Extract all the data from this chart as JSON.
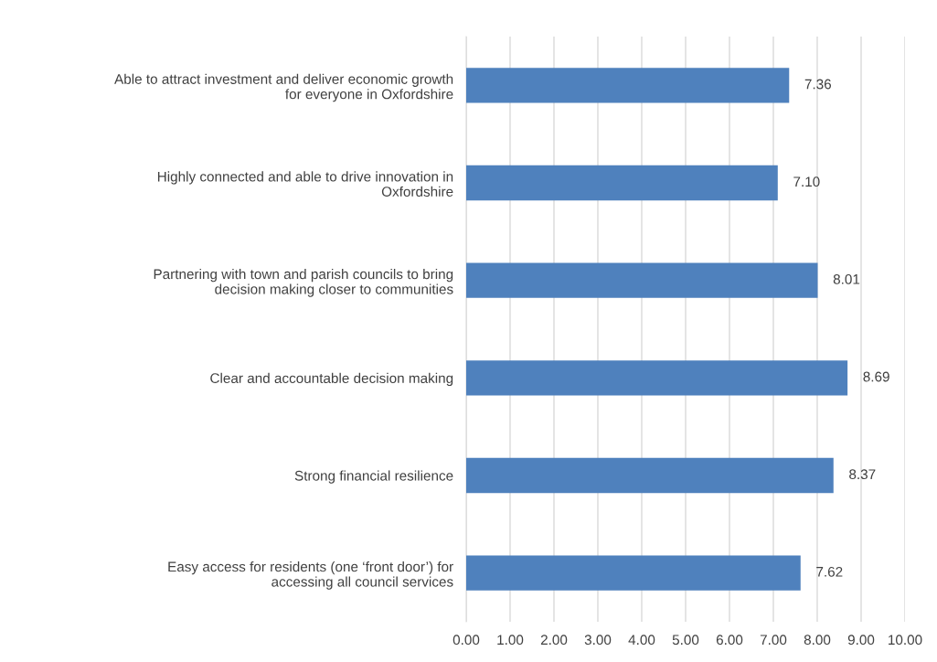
{
  "chart_data": {
    "type": "bar",
    "orientation": "horizontal",
    "categories": [
      "Able to attract investment and deliver economic growth for everyone in Oxfordshire",
      "Highly connected and able to drive innovation in Oxfordshire",
      "Partnering with town and parish councils to bring decision making closer to communities",
      "Clear and accountable decision making",
      "Strong financial resilience",
      "Easy access for residents (one ‘front door’) for accessing all council services"
    ],
    "values": [
      7.36,
      7.1,
      8.01,
      8.69,
      8.37,
      7.62
    ],
    "value_labels": [
      "7.36",
      "7.10",
      "8.01",
      "8.69",
      "8.37",
      "7.62"
    ],
    "color": "#4f81bd",
    "xlim": [
      0,
      10
    ],
    "xticks": [
      {
        "value": 0,
        "label": "0.00"
      },
      {
        "value": 1,
        "label": "1.00"
      },
      {
        "value": 2,
        "label": "2.00"
      },
      {
        "value": 3,
        "label": "3.00"
      },
      {
        "value": 4,
        "label": "4.00"
      },
      {
        "value": 5,
        "label": "5.00"
      },
      {
        "value": 6,
        "label": "6.00"
      },
      {
        "value": 7,
        "label": "7.00"
      },
      {
        "value": 8,
        "label": "8.00"
      },
      {
        "value": 9,
        "label": "9.00"
      },
      {
        "value": 10,
        "label": "10.00"
      }
    ],
    "grid": "x"
  }
}
